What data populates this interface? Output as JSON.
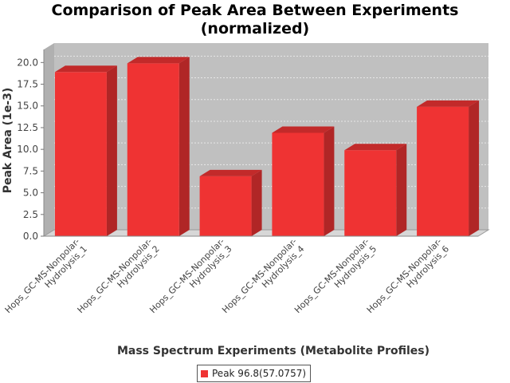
{
  "chart_data": {
    "type": "bar",
    "title_lines": [
      "Comparison of Peak Area Between Experiments",
      "(normalized)"
    ],
    "xlabel": "Mass Spectrum Experiments (Metabolite Profiles)",
    "ylabel": "Peak Area (1e-3)",
    "ylim": [
      0,
      21.5
    ],
    "yticks": [
      "0.0",
      "2.5",
      "5.0",
      "7.5",
      "10.0",
      "12.5",
      "15.0",
      "17.5",
      "20.0"
    ],
    "grid": true,
    "legend_position": "bottom",
    "categories": [
      [
        "Hops_GC-MS-Nonpolar-",
        "Hydrolysis_1"
      ],
      [
        "Hops_GC-MS-Nonpolar-",
        "Hydrolysis_2"
      ],
      [
        "Hops_GC-MS-Nonpolar-",
        "Hydrolysis_3"
      ],
      [
        "Hops_GC-MS-Nonpolar-",
        "Hydrolysis_4"
      ],
      [
        "Hops_GC-MS-Nonpolar-",
        "Hydrolysis_5"
      ],
      [
        "Hops_GC-MS-Nonpolar-",
        "Hydrolysis_6"
      ]
    ],
    "series": [
      {
        "name": "Peak 96.8(57.0757)",
        "values": [
          18.9,
          19.9,
          6.9,
          11.9,
          9.9,
          14.9
        ]
      }
    ],
    "colors": {
      "bar_front": "#ef3333",
      "bar_top": "#c22a2a",
      "bar_side": "#b02626",
      "plot_back": "#c0c0c0",
      "plot_floor": "#d7d7d7",
      "gridline": "#e8e8e8"
    }
  }
}
